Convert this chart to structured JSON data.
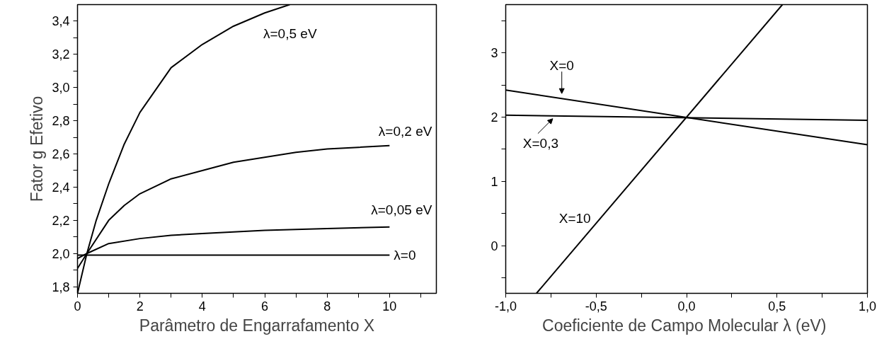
{
  "chart_data": [
    {
      "type": "line",
      "xlabel": "Parâmetro de Engarrafamento X",
      "ylabel": "Fator g Efetivo",
      "xlim": [
        0,
        11.5
      ],
      "ylim": [
        1.76,
        3.5
      ],
      "xticks": [
        0,
        {
          "value": 1,
          "label": null
        },
        2,
        {
          "value": 3,
          "label": null
        },
        4,
        {
          "value": 5,
          "label": null
        },
        6,
        {
          "value": 7,
          "label": null
        },
        8,
        {
          "value": 9,
          "label": null
        },
        10,
        {
          "value": 11,
          "label": null
        }
      ],
      "yticks": [
        {
          "value": 1.8,
          "label": "1,8"
        },
        {
          "value": 1.9,
          "label": null
        },
        {
          "value": 2.0,
          "label": "2,0"
        },
        {
          "value": 2.1,
          "label": null
        },
        {
          "value": 2.2,
          "label": "2,2"
        },
        {
          "value": 2.3,
          "label": null
        },
        {
          "value": 2.4,
          "label": "2,4"
        },
        {
          "value": 2.5,
          "label": null
        },
        {
          "value": 2.6,
          "label": "2,6"
        },
        {
          "value": 2.7,
          "label": null
        },
        {
          "value": 2.8,
          "label": "2,8"
        },
        {
          "value": 2.9,
          "label": null
        },
        {
          "value": 3.0,
          "label": "3,0"
        },
        {
          "value": 3.1,
          "label": null
        },
        {
          "value": 3.2,
          "label": "3,2"
        },
        {
          "value": 3.3,
          "label": null
        },
        {
          "value": 3.4,
          "label": "3,4"
        }
      ],
      "series": [
        {
          "color": "#000000",
          "x": [
            0,
            0.3,
            0.6,
            1,
            1.5,
            2,
            3,
            4,
            5,
            6,
            6.8
          ],
          "values": [
            1.76,
            2.0,
            2.2,
            2.42,
            2.66,
            2.85,
            3.12,
            3.26,
            3.37,
            3.45,
            3.5
          ]
        },
        {
          "color": "#000000",
          "x": [
            0,
            0.3,
            1,
            1.5,
            2,
            3,
            4,
            5,
            6,
            7,
            8,
            9,
            10
          ],
          "values": [
            1.91,
            2.0,
            2.2,
            2.29,
            2.36,
            2.45,
            2.5,
            2.55,
            2.58,
            2.61,
            2.63,
            2.64,
            2.65
          ]
        },
        {
          "color": "#000000",
          "x": [
            0,
            0.3,
            1,
            2,
            3,
            4,
            6,
            8,
            10
          ],
          "values": [
            1.97,
            2.0,
            2.06,
            2.09,
            2.11,
            2.12,
            2.14,
            2.15,
            2.16
          ]
        },
        {
          "color": "#000000",
          "x": [
            0,
            10
          ],
          "values": [
            1.99,
            1.99
          ]
        }
      ],
      "annotations": [
        {
          "text": "λ=0,5 eV",
          "x": 6.0,
          "y": 3.45
        },
        {
          "text": "λ=0,2 eV",
          "x": 10,
          "y": 2.65
        },
        {
          "text": "λ=0,05 eV",
          "x": 10,
          "y": 2.16
        },
        {
          "text": "λ=0",
          "x": 10,
          "y": 1.99
        }
      ]
    },
    {
      "type": "line",
      "xlabel": "Coeficiente de Campo Molecular  λ (eV)",
      "xlim": [
        -1,
        1
      ],
      "ylim": [
        -0.74,
        3.75
      ],
      "xticks": [
        {
          "value": -1,
          "label": "-1,0"
        },
        {
          "value": -0.75,
          "label": null
        },
        {
          "value": -0.5,
          "label": "-0,5"
        },
        {
          "value": -0.25,
          "label": null
        },
        {
          "value": 0,
          "label": "0,0"
        },
        {
          "value": 0.25,
          "label": null
        },
        {
          "value": 0.5,
          "label": "0,5"
        },
        {
          "value": 0.75,
          "label": null
        },
        {
          "value": 1,
          "label": "1,0"
        }
      ],
      "yticks": [
        {
          "value": -0.5,
          "label": null
        },
        0,
        {
          "value": 0.5,
          "label": null
        },
        1,
        {
          "value": 1.5,
          "label": null
        },
        2,
        {
          "value": 2.5,
          "label": null
        },
        3,
        {
          "value": 3.5,
          "label": null
        }
      ],
      "series": [
        {
          "color": "#000000",
          "x": [
            -1,
            1
          ],
          "values": [
            2.42,
            1.57
          ]
        },
        {
          "color": "#000000",
          "x": [
            -1,
            1
          ],
          "values": [
            2.03,
            1.95
          ]
        },
        {
          "color": "#000000",
          "x": [
            -0.83,
            0.53
          ],
          "values": [
            -0.74,
            3.75
          ]
        }
      ],
      "annotations": [
        {
          "text": "X=0",
          "x": -0.69,
          "y": 2.29
        },
        {
          "text": "X=0,3",
          "x": -0.74,
          "y": 2.02
        },
        {
          "text": "X=10",
          "x": -0.475,
          "y": 0.43
        }
      ]
    }
  ]
}
